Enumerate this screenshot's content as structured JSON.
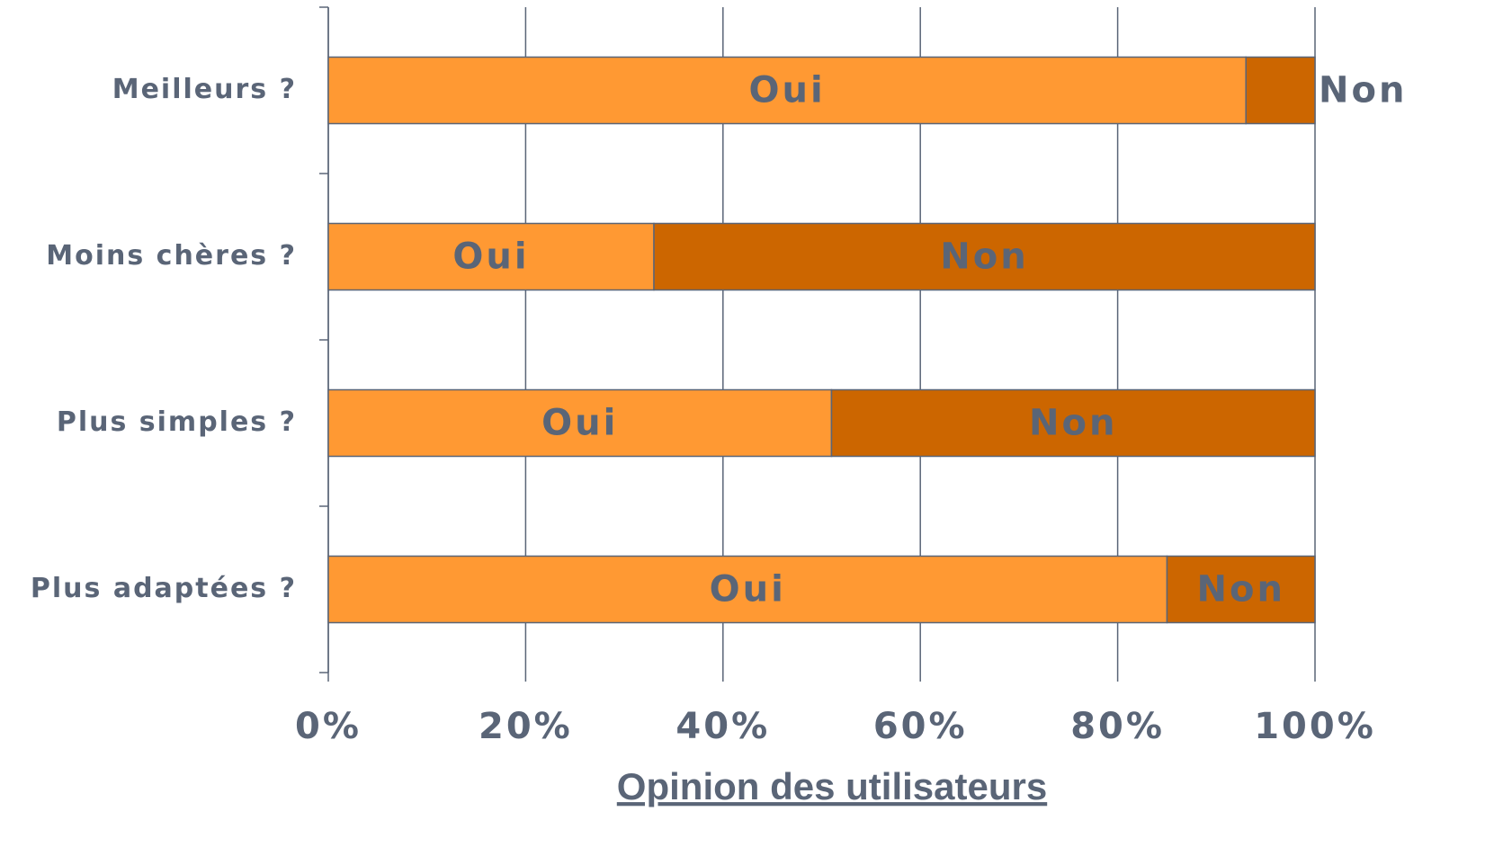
{
  "chart_data": {
    "type": "stacked-bar",
    "orientation": "horizontal",
    "x_label": "Opinion des utilisateurs",
    "categories": [
      "Meilleurs ?",
      "Moins chères ?",
      "Plus simples ?",
      "Plus adaptées ?"
    ],
    "series": [
      {
        "name": "Oui",
        "color": "#FF9933",
        "values": [
          93,
          33,
          51,
          85
        ]
      },
      {
        "name": "Non",
        "color": "#CC6600",
        "values": [
          7,
          67,
          49,
          15
        ]
      }
    ],
    "xlim": [
      0,
      100
    ],
    "xticks": [
      {
        "value": 0,
        "label": "0%"
      },
      {
        "value": 20,
        "label": "20%"
      },
      {
        "value": 40,
        "label": "40%"
      },
      {
        "value": 60,
        "label": "60%"
      },
      {
        "value": 80,
        "label": "80%"
      },
      {
        "value": 100,
        "label": "100%"
      }
    ],
    "grid": true
  }
}
